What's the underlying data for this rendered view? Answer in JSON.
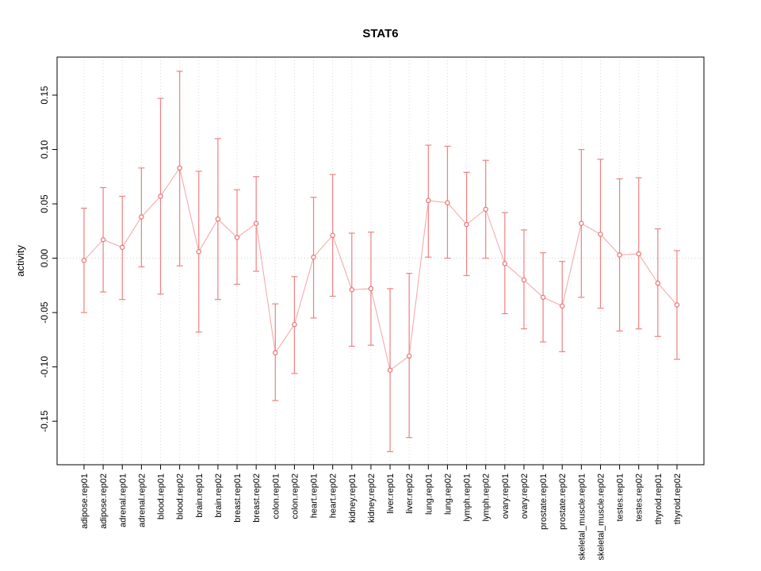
{
  "chart": {
    "title": "STAT6",
    "ylabel": "activity"
  },
  "chart_data": {
    "type": "scatter",
    "title": "STAT6",
    "xlabel": "",
    "ylabel": "activity",
    "ylim": [
      -0.19,
      0.185
    ],
    "grid": "dotted vertical per category, dotted horizontal at 0",
    "legend": "none",
    "ytick_values": [
      -0.15,
      -0.1,
      -0.05,
      0.0,
      0.05,
      0.1,
      0.15
    ],
    "ytick_labels": [
      "-0.15",
      "-0.10",
      "-0.05",
      "0.00",
      "0.05",
      "0.10",
      "0.15"
    ],
    "categories": [
      "adipose.rep01",
      "adipose.rep02",
      "adrenal.rep01",
      "adrenal.rep02",
      "blood.rep01",
      "blood.rep02",
      "brain.rep01",
      "brain.rep02",
      "breast.rep01",
      "breast.rep02",
      "colon.rep01",
      "colon.rep02",
      "heart.rep01",
      "heart.rep02",
      "kidney.rep01",
      "kidney.rep02",
      "liver.rep01",
      "liver.rep02",
      "lung.rep01",
      "lung.rep02",
      "lymph.rep01",
      "lymph.rep02",
      "ovary.rep01",
      "ovary.rep02",
      "prostate.rep01",
      "prostate.rep02",
      "skeletal_muscle.rep01",
      "skeletal_muscle.rep02",
      "testes.rep01",
      "testes.rep02",
      "thyroid.rep01",
      "thyroid.rep02"
    ],
    "series": [
      {
        "name": "activity",
        "values": [
          -0.002,
          0.017,
          0.01,
          0.038,
          0.057,
          0.083,
          0.006,
          0.036,
          0.019,
          0.032,
          -0.087,
          -0.061,
          0.001,
          0.021,
          -0.029,
          -0.028,
          -0.103,
          -0.09,
          0.053,
          0.051,
          0.031,
          0.045,
          -0.005,
          -0.02,
          -0.036,
          -0.044,
          0.032,
          0.022,
          0.003,
          0.004,
          -0.023,
          -0.043
        ],
        "lower": [
          -0.05,
          -0.031,
          -0.038,
          -0.008,
          -0.033,
          -0.007,
          -0.068,
          -0.038,
          -0.024,
          -0.012,
          -0.131,
          -0.106,
          -0.055,
          -0.035,
          -0.081,
          -0.08,
          -0.178,
          -0.165,
          0.001,
          0.0,
          -0.016,
          0.0,
          -0.051,
          -0.065,
          -0.077,
          -0.086,
          -0.036,
          -0.046,
          -0.067,
          -0.065,
          -0.072,
          -0.093
        ],
        "upper": [
          0.046,
          0.065,
          0.057,
          0.083,
          0.147,
          0.172,
          0.08,
          0.11,
          0.063,
          0.075,
          -0.042,
          -0.017,
          0.056,
          0.077,
          0.023,
          0.024,
          -0.028,
          -0.014,
          0.104,
          0.103,
          0.079,
          0.09,
          0.042,
          0.026,
          0.005,
          -0.003,
          0.1,
          0.091,
          0.073,
          0.074,
          0.027,
          0.007
        ]
      }
    ],
    "colors": {
      "errorbar": "#f08080",
      "connector_line": "#f5a3a3",
      "point_stroke": "#e87070",
      "point_fill": "#ffffff",
      "grid": "#d8d8d8",
      "zero_line": "#cccccc",
      "frame": "#000000"
    }
  }
}
